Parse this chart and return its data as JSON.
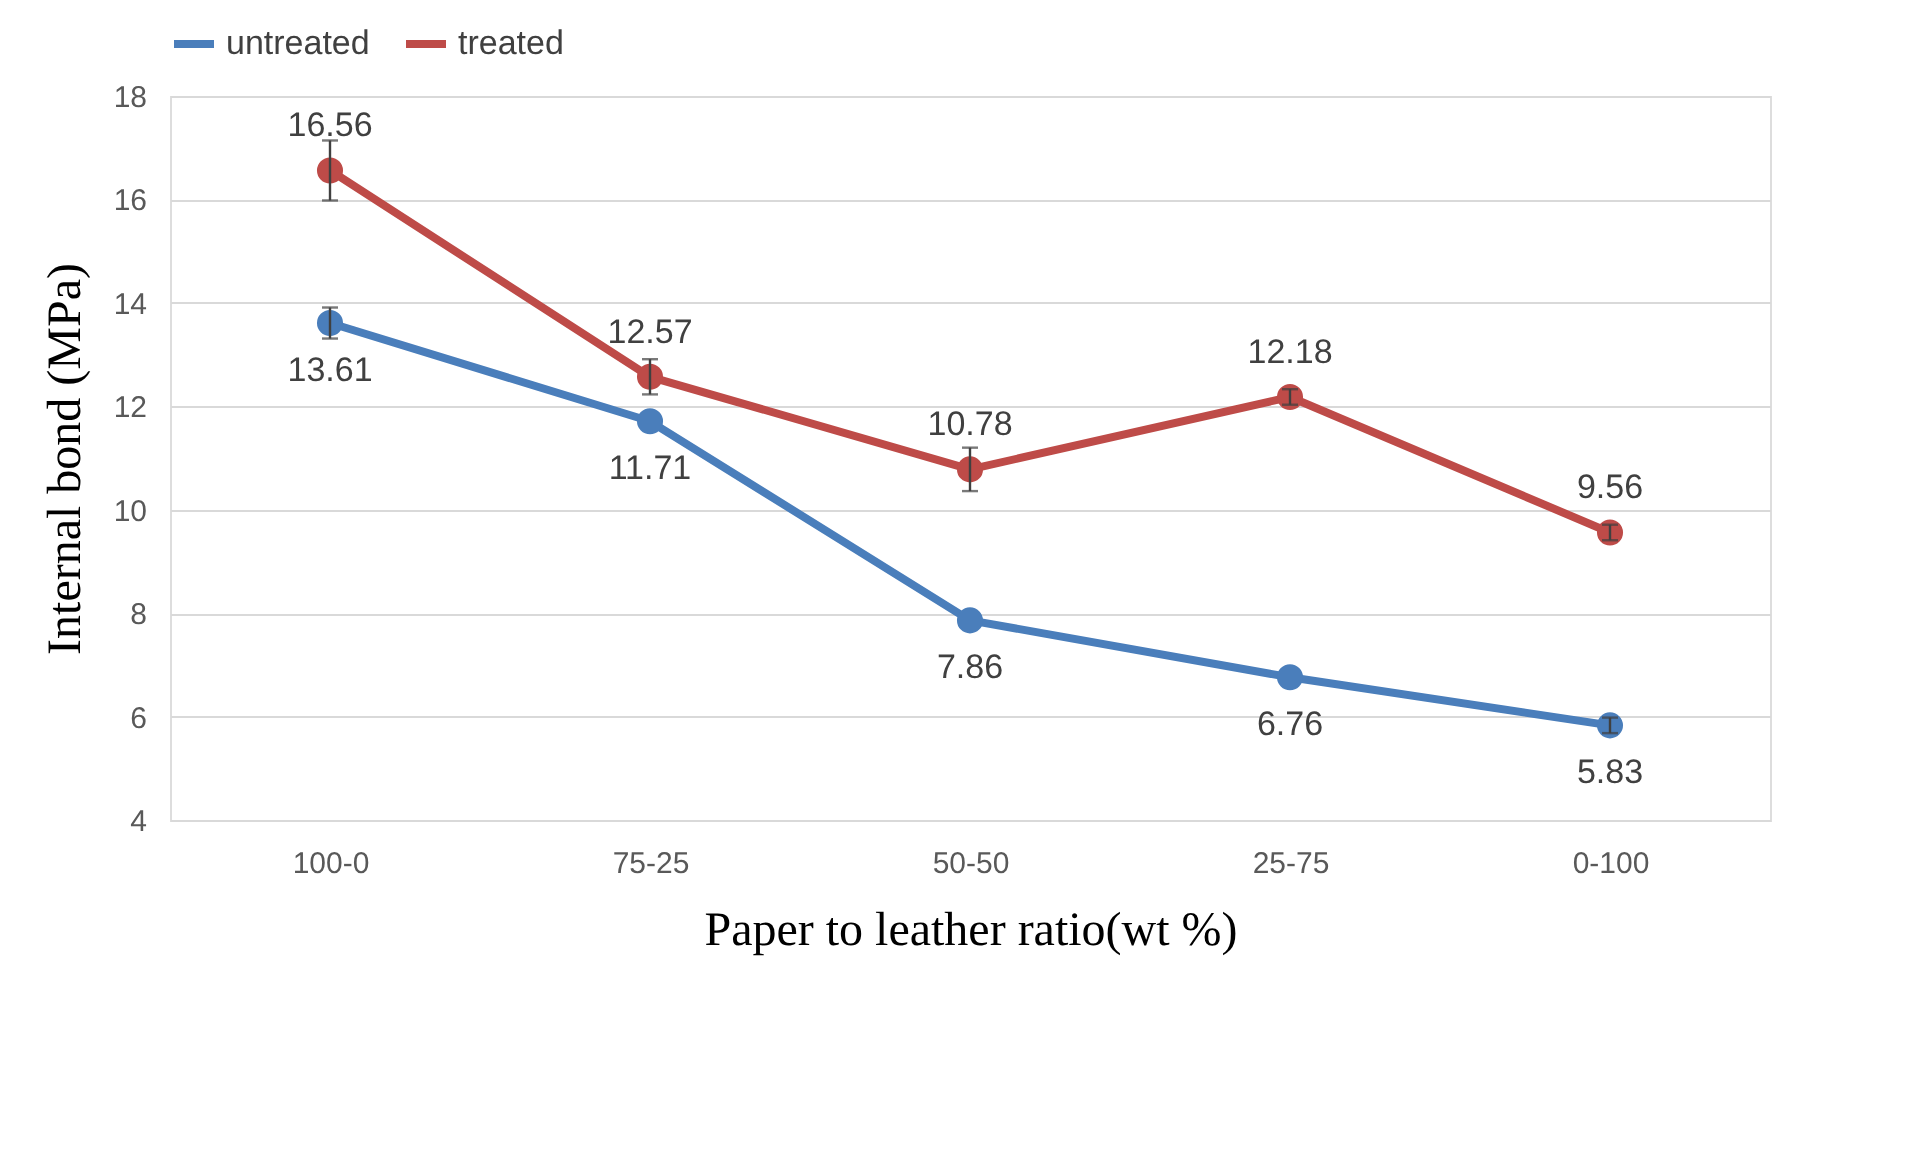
{
  "chart_data": {
    "type": "line",
    "xlabel": "Paper to leather ratio(wt %)",
    "ylabel": "Internal bond (MPa)",
    "categories": [
      "100-0",
      "75-25",
      "50-50",
      "25-75",
      "0-100"
    ],
    "series": [
      {
        "name": "untreated",
        "color": "#4a7ebb",
        "values": [
          13.61,
          11.71,
          7.86,
          6.76,
          5.83
        ],
        "errors": [
          0.3,
          null,
          null,
          null,
          0.15
        ]
      },
      {
        "name": "treated",
        "color": "#be4b48",
        "values": [
          16.56,
          12.57,
          10.78,
          12.18,
          9.56
        ],
        "errors": [
          0.58,
          0.34,
          0.42,
          0.15,
          0.15
        ]
      }
    ],
    "ylim": [
      4,
      18
    ],
    "yticks": [
      4,
      6,
      8,
      10,
      12,
      14,
      16,
      18
    ],
    "grid": "y",
    "legend": "top",
    "marker": "circle",
    "line_style": "solid",
    "data_labels": true
  }
}
